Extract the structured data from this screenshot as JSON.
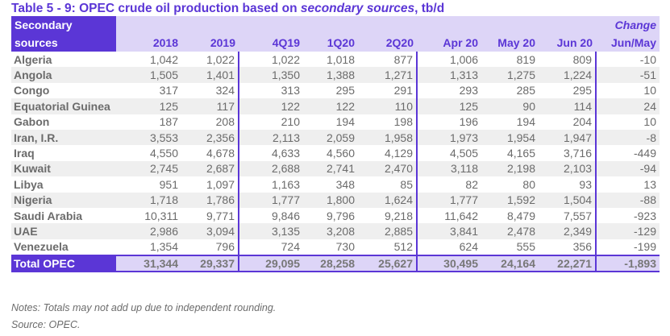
{
  "title": {
    "main": "Table 5 - 9: OPEC crude oil production based on ",
    "italic": "secondary sources",
    "suffix": ", tb/d"
  },
  "header": {
    "corner_line1": "Secondary",
    "corner_line2": "sources",
    "change_line1": "Change",
    "columns": [
      "2018",
      "2019",
      "4Q19",
      "1Q20",
      "2Q20",
      "Apr 20",
      "May 20",
      "Jun 20",
      "Jun/May"
    ]
  },
  "rows": [
    {
      "country": "Algeria",
      "values": [
        "1,042",
        "1,022",
        "1,022",
        "1,018",
        "877",
        "1,006",
        "819",
        "809",
        "-10"
      ]
    },
    {
      "country": "Angola",
      "values": [
        "1,505",
        "1,401",
        "1,350",
        "1,388",
        "1,271",
        "1,313",
        "1,275",
        "1,224",
        "-51"
      ]
    },
    {
      "country": "Congo",
      "values": [
        "317",
        "324",
        "313",
        "295",
        "291",
        "293",
        "285",
        "295",
        "10"
      ]
    },
    {
      "country": "Equatorial Guinea",
      "values": [
        "125",
        "117",
        "122",
        "122",
        "110",
        "125",
        "90",
        "114",
        "24"
      ]
    },
    {
      "country": "Gabon",
      "values": [
        "187",
        "208",
        "210",
        "194",
        "198",
        "196",
        "194",
        "204",
        "10"
      ]
    },
    {
      "country": "Iran, I.R.",
      "values": [
        "3,553",
        "2,356",
        "2,113",
        "2,059",
        "1,958",
        "1,973",
        "1,954",
        "1,947",
        "-8"
      ]
    },
    {
      "country": "Iraq",
      "values": [
        "4,550",
        "4,678",
        "4,633",
        "4,560",
        "4,129",
        "4,505",
        "4,165",
        "3,716",
        "-449"
      ]
    },
    {
      "country": "Kuwait",
      "values": [
        "2,745",
        "2,687",
        "2,688",
        "2,741",
        "2,470",
        "3,118",
        "2,198",
        "2,103",
        "-94"
      ]
    },
    {
      "country": "Libya",
      "values": [
        "951",
        "1,097",
        "1,163",
        "348",
        "85",
        "82",
        "80",
        "93",
        "13"
      ]
    },
    {
      "country": "Nigeria",
      "values": [
        "1,718",
        "1,786",
        "1,777",
        "1,800",
        "1,624",
        "1,777",
        "1,592",
        "1,504",
        "-88"
      ]
    },
    {
      "country": "Saudi Arabia",
      "values": [
        "10,311",
        "9,771",
        "9,846",
        "9,796",
        "9,218",
        "11,642",
        "8,479",
        "7,557",
        "-923"
      ]
    },
    {
      "country": "UAE",
      "values": [
        "2,986",
        "3,094",
        "3,135",
        "3,208",
        "2,885",
        "3,841",
        "2,478",
        "2,349",
        "-129"
      ]
    },
    {
      "country": "Venezuela",
      "values": [
        "1,354",
        "796",
        "724",
        "730",
        "512",
        "624",
        "555",
        "356",
        "-199"
      ]
    }
  ],
  "total": {
    "label": "Total OPEC",
    "values": [
      "31,344",
      "29,337",
      "29,095",
      "28,258",
      "25,627",
      "30,495",
      "24,164",
      "22,271",
      "-1,893"
    ]
  },
  "notes": "Notes: Totals may not add up due to independent rounding.",
  "source": "Source: OPEC."
}
